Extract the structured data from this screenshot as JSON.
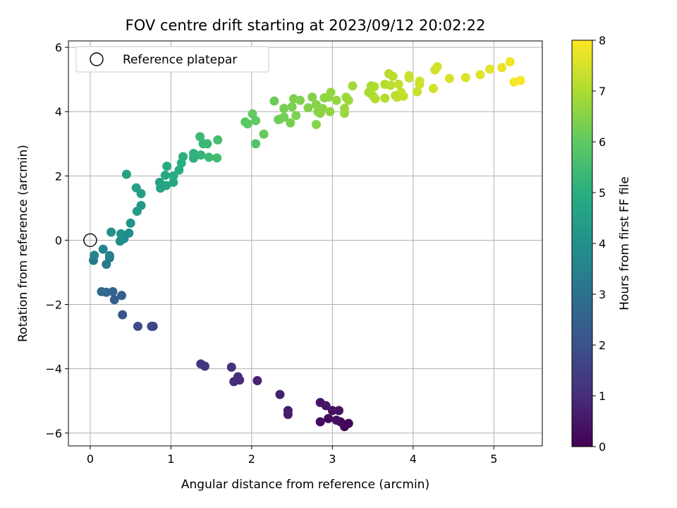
{
  "chart_data": {
    "type": "scatter",
    "title": "FOV centre drift starting at 2023/09/12 20:02:22",
    "xlabel": "Angular distance from reference (arcmin)",
    "ylabel": "Rotation from reference (arcmin)",
    "xlim": [
      -0.27,
      5.6
    ],
    "ylim": [
      -6.4,
      6.2
    ],
    "xticks": [
      "0",
      "1",
      "2",
      "3",
      "4",
      "5"
    ],
    "yticks": [
      "−6",
      "−4",
      "−2",
      "0",
      "2",
      "4",
      "6"
    ],
    "grid": true,
    "legend": {
      "placement": "top-left",
      "entries": [
        "Reference platepar"
      ]
    },
    "reference_point": {
      "x": 0,
      "y": 0
    },
    "colorbar": {
      "label": "Hours from first FF file",
      "range": [
        0,
        8
      ],
      "ticks": [
        "0",
        "1",
        "2",
        "3",
        "4",
        "5",
        "6",
        "7",
        "8"
      ],
      "colormap": "viridis"
    },
    "points": [
      {
        "x": 3.15,
        "y": -5.8,
        "h": 0.05
      },
      {
        "x": 3.2,
        "y": -5.7,
        "h": 0.1
      },
      {
        "x": 3.1,
        "y": -5.65,
        "h": 0.15
      },
      {
        "x": 2.95,
        "y": -5.55,
        "h": 0.2
      },
      {
        "x": 2.85,
        "y": -5.65,
        "h": 0.25
      },
      {
        "x": 3.05,
        "y": -5.6,
        "h": 0.3
      },
      {
        "x": 3.0,
        "y": -5.3,
        "h": 0.35
      },
      {
        "x": 3.08,
        "y": -5.3,
        "h": 0.4
      },
      {
        "x": 2.92,
        "y": -5.15,
        "h": 0.45
      },
      {
        "x": 2.85,
        "y": -5.05,
        "h": 0.5
      },
      {
        "x": 2.45,
        "y": -5.3,
        "h": 0.55
      },
      {
        "x": 2.45,
        "y": -5.42,
        "h": 0.6
      },
      {
        "x": 2.35,
        "y": -4.8,
        "h": 0.7
      },
      {
        "x": 2.07,
        "y": -4.37,
        "h": 0.8
      },
      {
        "x": 1.85,
        "y": -4.35,
        "h": 0.9
      },
      {
        "x": 1.78,
        "y": -4.4,
        "h": 0.95
      },
      {
        "x": 1.83,
        "y": -4.25,
        "h": 1.0
      },
      {
        "x": 1.75,
        "y": -3.95,
        "h": 1.1
      },
      {
        "x": 1.42,
        "y": -3.92,
        "h": 1.2
      },
      {
        "x": 1.37,
        "y": -3.85,
        "h": 1.25
      },
      {
        "x": 0.78,
        "y": -2.68,
        "h": 1.7
      },
      {
        "x": 0.76,
        "y": -2.68,
        "h": 1.75
      },
      {
        "x": 0.59,
        "y": -2.68,
        "h": 1.85
      },
      {
        "x": 0.4,
        "y": -2.32,
        "h": 2.1
      },
      {
        "x": 0.3,
        "y": -1.85,
        "h": 2.4
      },
      {
        "x": 0.39,
        "y": -1.72,
        "h": 2.5
      },
      {
        "x": 0.28,
        "y": -1.6,
        "h": 2.6
      },
      {
        "x": 0.2,
        "y": -1.62,
        "h": 2.65
      },
      {
        "x": 0.14,
        "y": -1.6,
        "h": 2.7
      },
      {
        "x": 0.04,
        "y": -0.63,
        "h": 3.2
      },
      {
        "x": 0.2,
        "y": -0.75,
        "h": 3.3
      },
      {
        "x": 0.24,
        "y": -0.55,
        "h": 3.4
      },
      {
        "x": 0.24,
        "y": -0.48,
        "h": 3.45
      },
      {
        "x": 0.05,
        "y": -0.47,
        "h": 3.5
      },
      {
        "x": 0.16,
        "y": -0.28,
        "h": 3.6
      },
      {
        "x": 0.37,
        "y": -0.03,
        "h": 3.8
      },
      {
        "x": 0.42,
        "y": 0.05,
        "h": 3.85
      },
      {
        "x": 0.48,
        "y": 0.22,
        "h": 3.9
      },
      {
        "x": 0.26,
        "y": 0.25,
        "h": 3.95
      },
      {
        "x": 0.38,
        "y": 0.2,
        "h": 4.0
      },
      {
        "x": 0.5,
        "y": 0.53,
        "h": 4.1
      },
      {
        "x": 0.63,
        "y": 1.08,
        "h": 4.3
      },
      {
        "x": 0.58,
        "y": 0.9,
        "h": 4.35
      },
      {
        "x": 0.63,
        "y": 1.45,
        "h": 4.4
      },
      {
        "x": 0.57,
        "y": 1.63,
        "h": 4.5
      },
      {
        "x": 0.45,
        "y": 2.05,
        "h": 4.55
      },
      {
        "x": 0.86,
        "y": 1.8,
        "h": 4.6
      },
      {
        "x": 0.87,
        "y": 1.62,
        "h": 4.65
      },
      {
        "x": 0.94,
        "y": 1.7,
        "h": 4.7
      },
      {
        "x": 1.03,
        "y": 1.8,
        "h": 4.75
      },
      {
        "x": 0.93,
        "y": 2.02,
        "h": 4.8
      },
      {
        "x": 0.95,
        "y": 2.3,
        "h": 4.85
      },
      {
        "x": 1.03,
        "y": 2.0,
        "h": 4.9
      },
      {
        "x": 1.1,
        "y": 2.18,
        "h": 4.95
      },
      {
        "x": 1.13,
        "y": 2.4,
        "h": 5.0
      },
      {
        "x": 1.15,
        "y": 2.6,
        "h": 5.05
      },
      {
        "x": 1.28,
        "y": 2.55,
        "h": 5.1
      },
      {
        "x": 1.28,
        "y": 2.7,
        "h": 5.15
      },
      {
        "x": 1.37,
        "y": 2.65,
        "h": 5.2
      },
      {
        "x": 1.4,
        "y": 3.0,
        "h": 5.3
      },
      {
        "x": 1.45,
        "y": 3.0,
        "h": 5.35
      },
      {
        "x": 1.36,
        "y": 3.22,
        "h": 5.4
      },
      {
        "x": 1.47,
        "y": 2.58,
        "h": 5.45
      },
      {
        "x": 1.57,
        "y": 2.56,
        "h": 5.5
      },
      {
        "x": 1.58,
        "y": 3.12,
        "h": 5.55
      },
      {
        "x": 2.05,
        "y": 3.0,
        "h": 5.8
      },
      {
        "x": 1.95,
        "y": 3.62,
        "h": 5.9
      },
      {
        "x": 1.92,
        "y": 3.68,
        "h": 5.95
      },
      {
        "x": 2.05,
        "y": 3.72,
        "h": 6.0
      },
      {
        "x": 2.01,
        "y": 3.93,
        "h": 6.05
      },
      {
        "x": 2.15,
        "y": 3.3,
        "h": 6.1
      },
      {
        "x": 2.28,
        "y": 4.33,
        "h": 6.15
      },
      {
        "x": 2.35,
        "y": 3.77,
        "h": 6.2
      },
      {
        "x": 2.33,
        "y": 3.75,
        "h": 6.2
      },
      {
        "x": 2.4,
        "y": 3.83,
        "h": 6.25
      },
      {
        "x": 2.4,
        "y": 4.1,
        "h": 6.3
      },
      {
        "x": 2.48,
        "y": 3.65,
        "h": 6.3
      },
      {
        "x": 2.5,
        "y": 4.15,
        "h": 6.35
      },
      {
        "x": 2.52,
        "y": 4.4,
        "h": 6.35
      },
      {
        "x": 2.55,
        "y": 3.88,
        "h": 6.4
      },
      {
        "x": 2.6,
        "y": 4.35,
        "h": 6.4
      },
      {
        "x": 2.7,
        "y": 4.12,
        "h": 6.45
      },
      {
        "x": 2.75,
        "y": 4.45,
        "h": 6.45
      },
      {
        "x": 2.8,
        "y": 3.6,
        "h": 6.5
      },
      {
        "x": 2.8,
        "y": 4.22,
        "h": 6.5
      },
      {
        "x": 2.82,
        "y": 4.0,
        "h": 6.55
      },
      {
        "x": 2.85,
        "y": 3.95,
        "h": 6.55
      },
      {
        "x": 2.88,
        "y": 4.1,
        "h": 6.6
      },
      {
        "x": 2.9,
        "y": 4.43,
        "h": 6.6
      },
      {
        "x": 2.95,
        "y": 4.45,
        "h": 6.65
      },
      {
        "x": 2.97,
        "y": 4.0,
        "h": 6.65
      },
      {
        "x": 2.98,
        "y": 4.6,
        "h": 6.7
      },
      {
        "x": 3.05,
        "y": 4.35,
        "h": 6.7
      },
      {
        "x": 3.15,
        "y": 3.95,
        "h": 6.75
      },
      {
        "x": 3.15,
        "y": 4.1,
        "h": 6.75
      },
      {
        "x": 3.17,
        "y": 4.45,
        "h": 6.8
      },
      {
        "x": 3.2,
        "y": 4.35,
        "h": 6.8
      },
      {
        "x": 3.25,
        "y": 4.8,
        "h": 6.85
      },
      {
        "x": 3.45,
        "y": 4.6,
        "h": 6.95
      },
      {
        "x": 3.48,
        "y": 4.8,
        "h": 6.95
      },
      {
        "x": 3.5,
        "y": 4.5,
        "h": 7.0
      },
      {
        "x": 3.52,
        "y": 4.78,
        "h": 7.0
      },
      {
        "x": 3.53,
        "y": 4.4,
        "h": 7.05
      },
      {
        "x": 3.65,
        "y": 4.85,
        "h": 7.05
      },
      {
        "x": 3.65,
        "y": 4.42,
        "h": 7.1
      },
      {
        "x": 3.7,
        "y": 5.18,
        "h": 7.1
      },
      {
        "x": 3.72,
        "y": 4.82,
        "h": 7.15
      },
      {
        "x": 3.75,
        "y": 5.1,
        "h": 7.15
      },
      {
        "x": 3.78,
        "y": 4.5,
        "h": 7.2
      },
      {
        "x": 3.8,
        "y": 4.45,
        "h": 7.2
      },
      {
        "x": 3.82,
        "y": 4.85,
        "h": 7.25
      },
      {
        "x": 3.85,
        "y": 4.6,
        "h": 7.25
      },
      {
        "x": 3.88,
        "y": 4.48,
        "h": 7.3
      },
      {
        "x": 3.95,
        "y": 5.05,
        "h": 7.3
      },
      {
        "x": 3.95,
        "y": 5.12,
        "h": 7.35
      },
      {
        "x": 4.05,
        "y": 4.62,
        "h": 7.35
      },
      {
        "x": 4.08,
        "y": 4.85,
        "h": 7.4
      },
      {
        "x": 4.08,
        "y": 4.95,
        "h": 7.4
      },
      {
        "x": 4.25,
        "y": 4.72,
        "h": 7.45
      },
      {
        "x": 4.27,
        "y": 5.3,
        "h": 7.45
      },
      {
        "x": 4.3,
        "y": 5.4,
        "h": 7.5
      },
      {
        "x": 4.45,
        "y": 5.03,
        "h": 7.55
      },
      {
        "x": 4.65,
        "y": 5.06,
        "h": 7.6
      },
      {
        "x": 4.83,
        "y": 5.15,
        "h": 7.65
      },
      {
        "x": 4.95,
        "y": 5.32,
        "h": 7.7
      },
      {
        "x": 5.1,
        "y": 5.37,
        "h": 7.75
      },
      {
        "x": 5.2,
        "y": 5.55,
        "h": 7.8
      },
      {
        "x": 5.25,
        "y": 4.92,
        "h": 7.9
      },
      {
        "x": 5.33,
        "y": 4.97,
        "h": 7.95
      }
    ]
  }
}
